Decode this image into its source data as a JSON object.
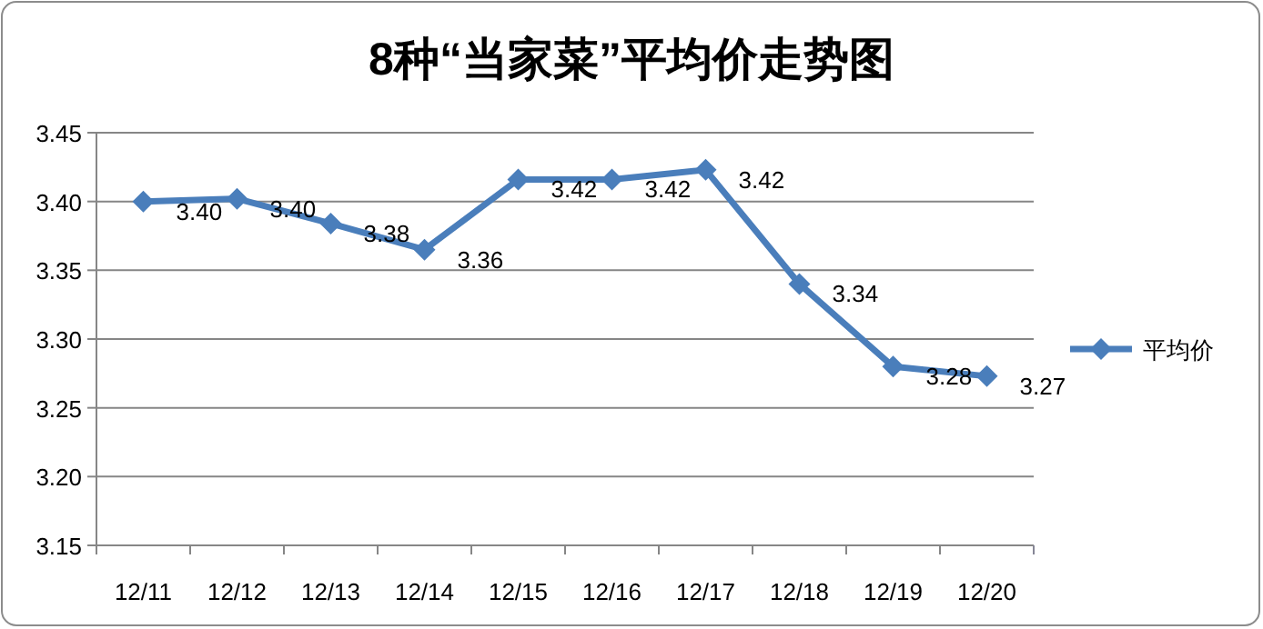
{
  "chart_data": {
    "type": "line",
    "title": "8种“当家菜”平均价走势图",
    "categories": [
      "12/11",
      "12/12",
      "12/13",
      "12/14",
      "12/15",
      "12/16",
      "12/17",
      "12/18",
      "12/19",
      "12/20"
    ],
    "series": [
      {
        "name": "平均价",
        "color": "#4a7ebb",
        "values": [
          3.4,
          3.402,
          3.384,
          3.365,
          3.416,
          3.416,
          3.423,
          3.34,
          3.28,
          3.273
        ],
        "value_labels": [
          "3.40",
          "3.40",
          "3.38",
          "3.36",
          "3.42",
          "3.42",
          "3.42",
          "3.34",
          "3.28",
          "3.27"
        ]
      }
    ],
    "ylim": [
      3.15,
      3.45
    ],
    "yticks": [
      3.15,
      {
        "value": 3.2,
        "label": "3.20"
      },
      3.25,
      {
        "value": 3.3,
        "label": "3.30"
      },
      3.35,
      {
        "value": 3.4,
        "label": "3.40"
      },
      3.45
    ],
    "grid": "y",
    "legend": "right",
    "marker": "diamond",
    "line_style": "solid"
  }
}
